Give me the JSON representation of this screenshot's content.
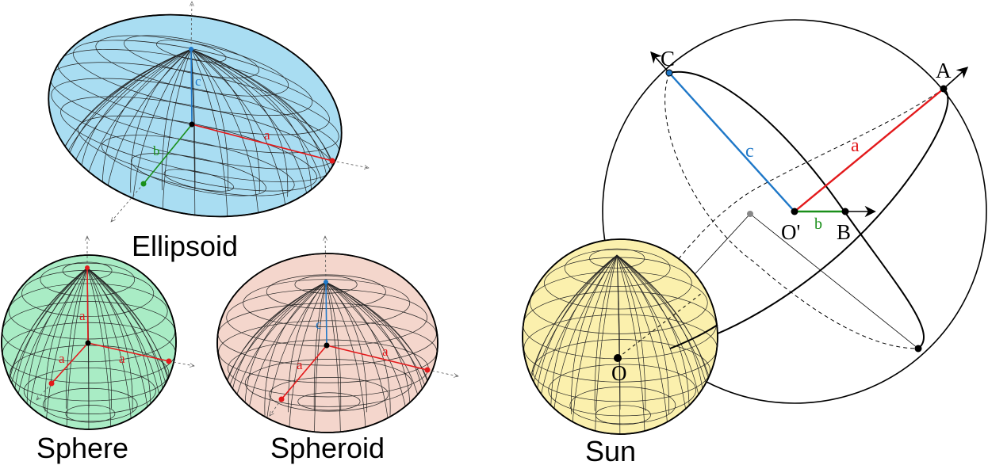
{
  "captions": {
    "ellipsoid": "Ellipsoid",
    "sphere": "Sphere",
    "spheroid": "Spheroid",
    "sun": "Sun"
  },
  "axis_labels": {
    "a": "a",
    "b": "b",
    "c": "c"
  },
  "points": {
    "A": "A",
    "B": "B",
    "C": "C",
    "O_prime": "O'",
    "O": "O"
  },
  "colors": {
    "ellipsoid_fill": "#a9ddf2",
    "sphere_fill": "#a9ecc5",
    "spheroid_fill": "#f4d6cc",
    "sun_fill": "#fbf0ad",
    "axis_a": "#e31a1c",
    "axis_b": "#1a8f1a",
    "axis_c": "#1f78c8"
  }
}
